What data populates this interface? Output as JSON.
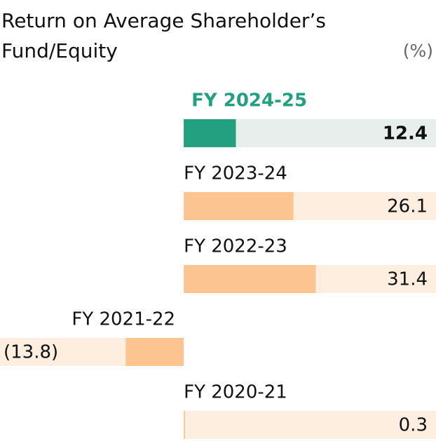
{
  "chart_data": {
    "type": "bar",
    "orientation": "horizontal",
    "title": "Return on Average Shareholder’s Fund/Equity",
    "unit": "(%)",
    "categories": [
      "FY 2024-25",
      "FY 2023-24",
      "FY 2022-23",
      "FY 2021-22",
      "FY 2020-21"
    ],
    "values": [
      12.4,
      26.1,
      31.4,
      -13.8,
      0.3
    ],
    "value_labels": [
      "12.4",
      "26.1",
      "31.4",
      "(13.8)",
      "0.3"
    ],
    "colors": [
      "#22a07f",
      "#fbc490",
      "#fbc490",
      "#fbc490",
      "#fbc490"
    ],
    "track_colors": [
      "#e8eeec",
      "#fdeee0",
      "#fdeee0",
      "#fdeee0",
      "#fdeee0"
    ],
    "label_colors": [
      "#22a07f",
      "#111111",
      "#111111",
      "#111111",
      "#111111"
    ],
    "xlim": [
      -43.7,
      60
    ]
  }
}
